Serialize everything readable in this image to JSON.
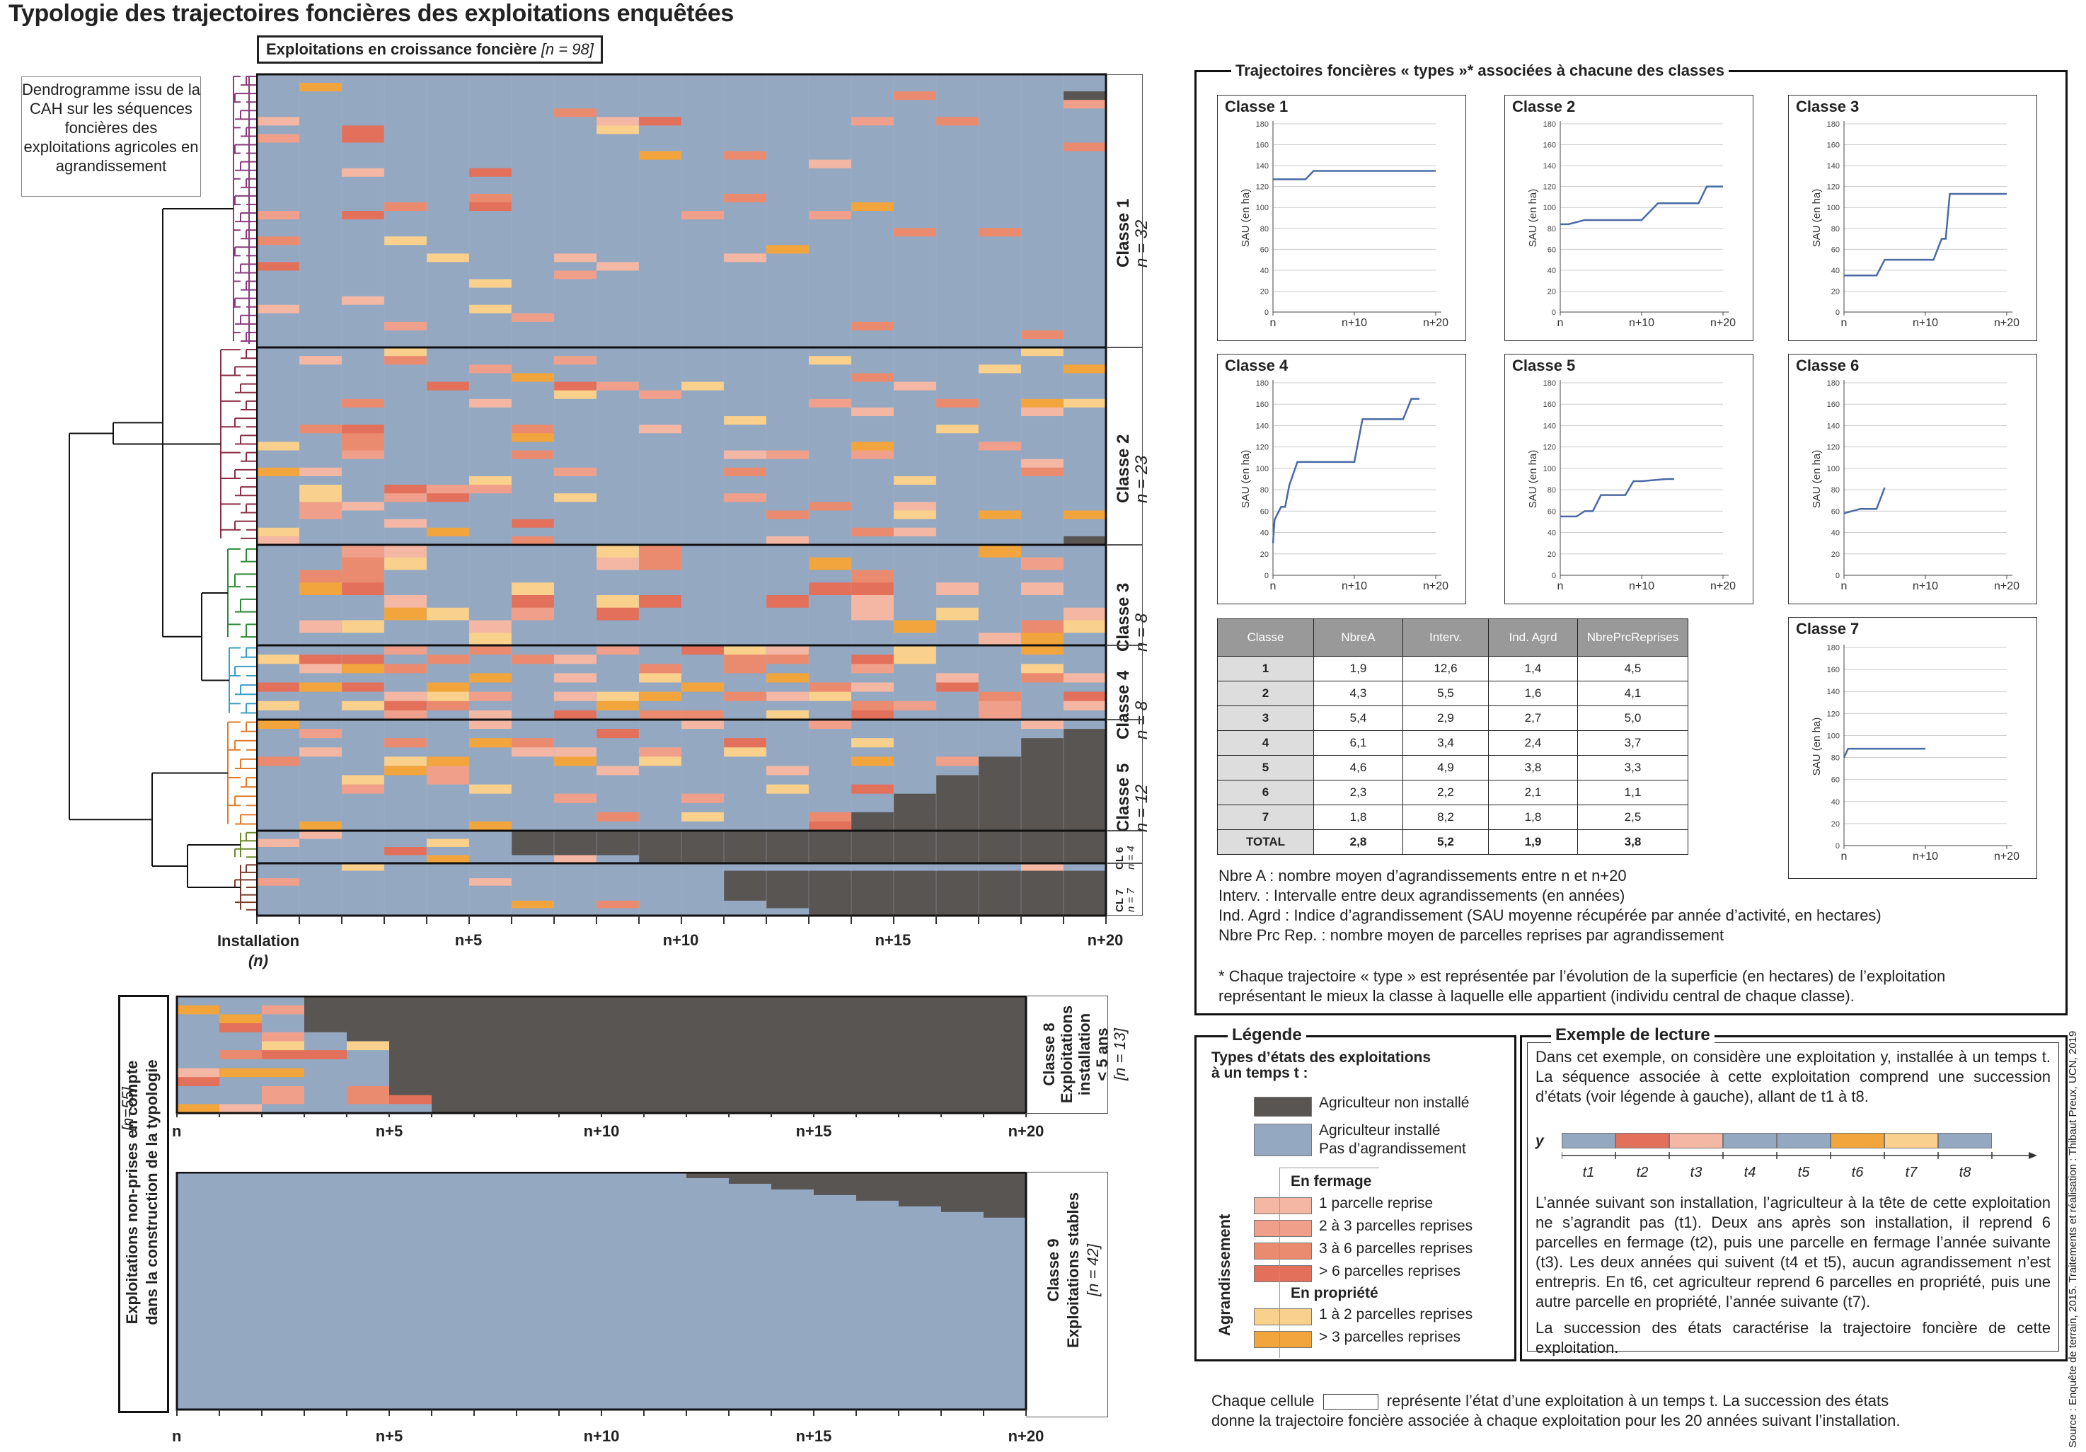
{
  "title": "Typologie des trajectoires foncières des exploitations enquêtées",
  "growth_header": {
    "label": "Exploitations en croissance foncière",
    "n": "[n = 98]"
  },
  "dendro_note": "Dendrogramme issu de la CAH sur les séquences foncières des exploitations agricoles en agrandissement",
  "main_axis": {
    "start": "Installation",
    "start_sub": "(n)",
    "ticks": [
      "n+5",
      "n+10",
      "n+15",
      "n+20"
    ]
  },
  "classes": [
    {
      "name": "Classe 1",
      "n": "n = 32"
    },
    {
      "name": "Classe 2",
      "n": "n = 23"
    },
    {
      "name": "Classe 3",
      "n": "n = 8"
    },
    {
      "name": "Classe 4",
      "n": "n = 8"
    },
    {
      "name": "Classe 5",
      "n": "n = 12"
    },
    {
      "name": "CL 6",
      "n": "n = 4"
    },
    {
      "name": "CL 7",
      "n": "n = 7"
    }
  ],
  "excluded_label_1": "Exploitations non-prises en compte",
  "excluded_label_2": "dans la construction de la typologie",
  "excluded_n": "[n=55]",
  "class8": {
    "name": "Classe 8",
    "l1": "Exploitations",
    "l2": "installation",
    "l3": "< 5 ans",
    "n": "[n = 13]"
  },
  "class9": {
    "name": "Classe 9",
    "l1": "Exploitations stables",
    "n": "[n = 42]"
  },
  "bottom_axis": {
    "start": "n",
    "ticks": [
      "n+5",
      "n+10",
      "n+15",
      "n+20"
    ]
  },
  "traj_title": "Trajectoires foncières « types »* associées à chacune des classes",
  "mini_charts": {
    "ylabel": "SAU (en ha)",
    "yticks": [
      "0",
      "20",
      "40",
      "60",
      "80",
      "100",
      "120",
      "140",
      "160",
      "180"
    ],
    "xticks": [
      "n",
      "n+10",
      "n+20"
    ],
    "panels": [
      {
        "title": "Classe 1",
        "x": [
          0,
          4,
          5,
          20
        ],
        "y": [
          127,
          127,
          135,
          135
        ]
      },
      {
        "title": "Classe 2",
        "x": [
          0,
          1,
          3,
          9,
          10,
          12,
          13,
          17,
          18,
          20
        ],
        "y": [
          84,
          84,
          88,
          88,
          88,
          104,
          104,
          104,
          120,
          120
        ]
      },
      {
        "title": "Classe 3",
        "x": [
          0,
          4,
          5,
          11,
          12,
          12.5,
          13,
          13.5,
          20
        ],
        "y": [
          35,
          35,
          50,
          50,
          70,
          70,
          113,
          113,
          113
        ]
      },
      {
        "title": "Classe 4",
        "x": [
          0,
          0.2,
          1,
          1.5,
          2,
          3,
          10,
          11,
          16,
          17,
          18
        ],
        "y": [
          30,
          52,
          64,
          64,
          84,
          106,
          106,
          146,
          146,
          165,
          165
        ]
      },
      {
        "title": "Classe 5",
        "x": [
          0,
          2,
          3,
          4,
          5,
          8,
          9,
          10,
          13,
          14
        ],
        "y": [
          55,
          55,
          60,
          60,
          75,
          75,
          88,
          88,
          90,
          90
        ]
      },
      {
        "title": "Classe 6",
        "x": [
          0,
          1,
          2,
          3,
          4,
          5
        ],
        "y": [
          58,
          60,
          62,
          62,
          62,
          82
        ]
      },
      {
        "title": "Classe 7",
        "x": [
          0,
          0.5,
          1,
          10
        ],
        "y": [
          80,
          88,
          88,
          88
        ]
      }
    ]
  },
  "stats_table": {
    "headers": [
      "Classe",
      "NbreA",
      "Interv.",
      "Ind. Agrd",
      "NbrePrcReprises"
    ],
    "rows": [
      [
        "1",
        "1,9",
        "12,6",
        "1,4",
        "4,5"
      ],
      [
        "2",
        "4,3",
        "5,5",
        "1,6",
        "4,1"
      ],
      [
        "3",
        "5,4",
        "2,9",
        "2,7",
        "5,0"
      ],
      [
        "4",
        "6,1",
        "3,4",
        "2,4",
        "3,7"
      ],
      [
        "5",
        "4,6",
        "4,9",
        "3,8",
        "3,3"
      ],
      [
        "6",
        "2,3",
        "2,2",
        "2,1",
        "1,1"
      ],
      [
        "7",
        "1,8",
        "8,2",
        "1,8",
        "2,5"
      ],
      [
        "TOTAL",
        "2,8",
        "5,2",
        "1,9",
        "3,8"
      ]
    ]
  },
  "abbrev_notes": [
    "Nbre A : nombre moyen d’agrandissements entre n et n+20",
    "Interv. : Intervalle entre deux agrandissements (en années)",
    "Ind. Agrd : Indice d’agrandissement (SAU moyenne récupérée par année d’activité, en hectares)",
    "Nbre Prc Rep. : nombre moyen de parcelles reprises par agrandissement"
  ],
  "footnote_1": "* Chaque trajectoire « type » est représentée par l’évolution de la superficie (en hectares) de l’exploitation",
  "footnote_2": "représentant le mieux la classe à laquelle elle appartient (individu central de chaque classe).",
  "legend": {
    "title": "Légende",
    "subtitle": "Types d’états des exploitations à un temps t :",
    "not_installed": "Agriculteur non installé",
    "installed_1": "Agriculteur installé",
    "installed_2": "Pas d’agrandissement",
    "group": "Agrandissement",
    "fermage_title": "En fermage",
    "fermage": [
      "1 parcelle reprise",
      "2 à 3 parcelles reprises",
      "3 à 6 parcelles reprises",
      "> 6 parcelles reprises"
    ],
    "propriete_title": "En propriété",
    "propriete": [
      "1 à 2 parcelles reprises",
      "> 3 parcelles reprises"
    ],
    "colors": {
      "dark": "#595552",
      "blue": "#94a8c2",
      "f1": "#f4b7a4",
      "f2": "#f0a08a",
      "f3": "#ea8a6e",
      "f4": "#e2705a",
      "p1": "#f9d08c",
      "p2": "#f2a53c"
    }
  },
  "example": {
    "title": "Exemple de lecture",
    "p1": "Dans cet exemple, on considère une exploitation y, installée à un temps t. La séquence associée à cette exploitation comprend une succession d’états (voir légende à gauche), allant de t1 à t8.",
    "seq_label": "y",
    "t_labels": [
      "t1",
      "t2",
      "t3",
      "t4",
      "t5",
      "t6",
      "t7",
      "t8"
    ],
    "p2": "L’année suivant son installation, l’agriculteur à la tête de cette exploitation ne s’agrandit pas (t1). Deux ans après son installation, il reprend 6 parcelles en fermage (t2), puis une parcelle en fermage l’année suivante (t3). Les deux années qui suivent (t4 et t5), aucun agrandissement n’est entrepris. En t6, cet agriculteur reprend 6 parcelles en propriété, puis une autre parcelle en propriété, l’année suivante (t7).",
    "p3": "La succession des états caractérise la trajectoire foncière de cette exploitation."
  },
  "cell_note_1": "Chaque cellule",
  "cell_note_2": "représente l’état d’une exploitation à un temps t. La succession des états",
  "cell_note_3": "donne la trajectoire foncière associée à chaque exploitation pour les 20 années suivant l’installation.",
  "source": "Source : Enquête de terrain, 2015. Traitements et réalisation : Thibaut Preux, UCN, 2019"
}
